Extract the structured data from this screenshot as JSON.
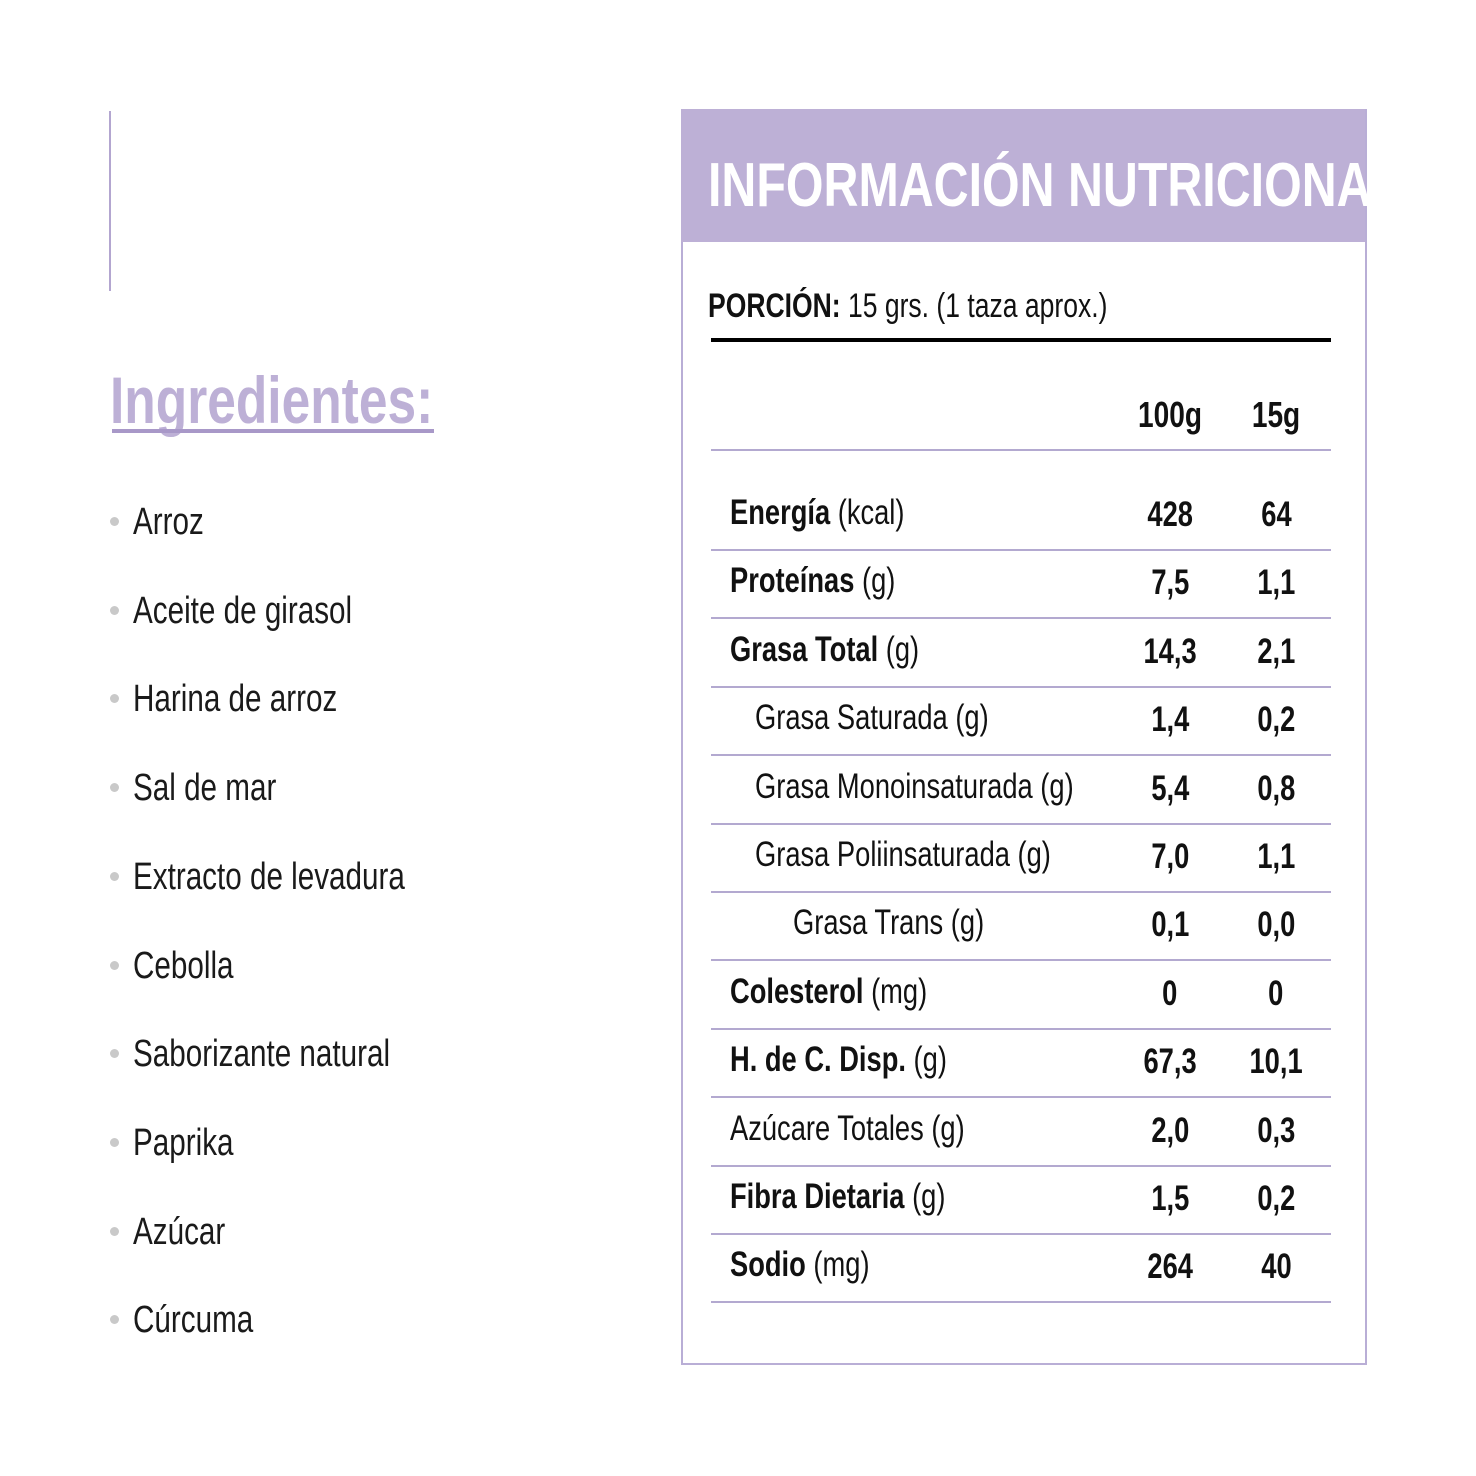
{
  "ingredients": {
    "title": "Ingredientes:",
    "items": [
      "Arroz",
      "Aceite de girasol",
      "Harina de arroz",
      "Sal de mar",
      "Extracto de levadura",
      "Cebolla",
      "Saborizante natural",
      "Paprika",
      "Azúcar",
      "Cúrcuma"
    ]
  },
  "nutrition": {
    "title": "INFORMACIÓN NUTRICIONAL",
    "portion_label": "PORCIÓN:",
    "portion_value": "15 grs. (1 taza aprox.)",
    "columns": [
      "100g",
      "15g"
    ],
    "rows": [
      {
        "name": "Energía",
        "unit": "(kcal)",
        "bold": true,
        "indent": 0,
        "v100": "428",
        "v15": "64"
      },
      {
        "name": "Proteínas",
        "unit": "(g)",
        "bold": true,
        "indent": 0,
        "v100": "7,5",
        "v15": "1,1"
      },
      {
        "name": "Grasa Total",
        "unit": "(g)",
        "bold": true,
        "indent": 0,
        "v100": "14,3",
        "v15": "2,1"
      },
      {
        "name": "Grasa Saturada",
        "unit": "(g)",
        "bold": false,
        "indent": 1,
        "v100": "1,4",
        "v15": "0,2"
      },
      {
        "name": "Grasa Monoinsaturada",
        "unit": "(g)",
        "bold": false,
        "indent": 1,
        "v100": "5,4",
        "v15": "0,8"
      },
      {
        "name": "Grasa Poliinsaturada",
        "unit": "(g)",
        "bold": false,
        "indent": 1,
        "v100": "7,0",
        "v15": "1,1"
      },
      {
        "name": "Grasa Trans",
        "unit": "(g)",
        "bold": false,
        "indent": 2,
        "v100": "0,1",
        "v15": "0,0"
      },
      {
        "name": "Colesterol",
        "unit": "(mg)",
        "bold": true,
        "indent": 0,
        "v100": "0",
        "v15": "0"
      },
      {
        "name": "H. de C. Disp.",
        "unit": "(g)",
        "bold": true,
        "indent": 0,
        "v100": "67,3",
        "v15": "10,1"
      },
      {
        "name": "Azúcare Totales",
        "unit": "(g)",
        "bold": false,
        "indent": 0,
        "v100": "2,0",
        "v15": "0,3"
      },
      {
        "name": "Fibra Dietaria",
        "unit": "(g)",
        "bold": true,
        "indent": 0,
        "v100": "1,5",
        "v15": "0,2"
      },
      {
        "name": "Sodio",
        "unit": "(mg)",
        "bold": true,
        "indent": 0,
        "v100": "264",
        "v15": "40"
      }
    ]
  },
  "colors": {
    "accent": "#bdb0d6",
    "rule": "#b3a9d0",
    "bullet": "#c9c9c9"
  }
}
